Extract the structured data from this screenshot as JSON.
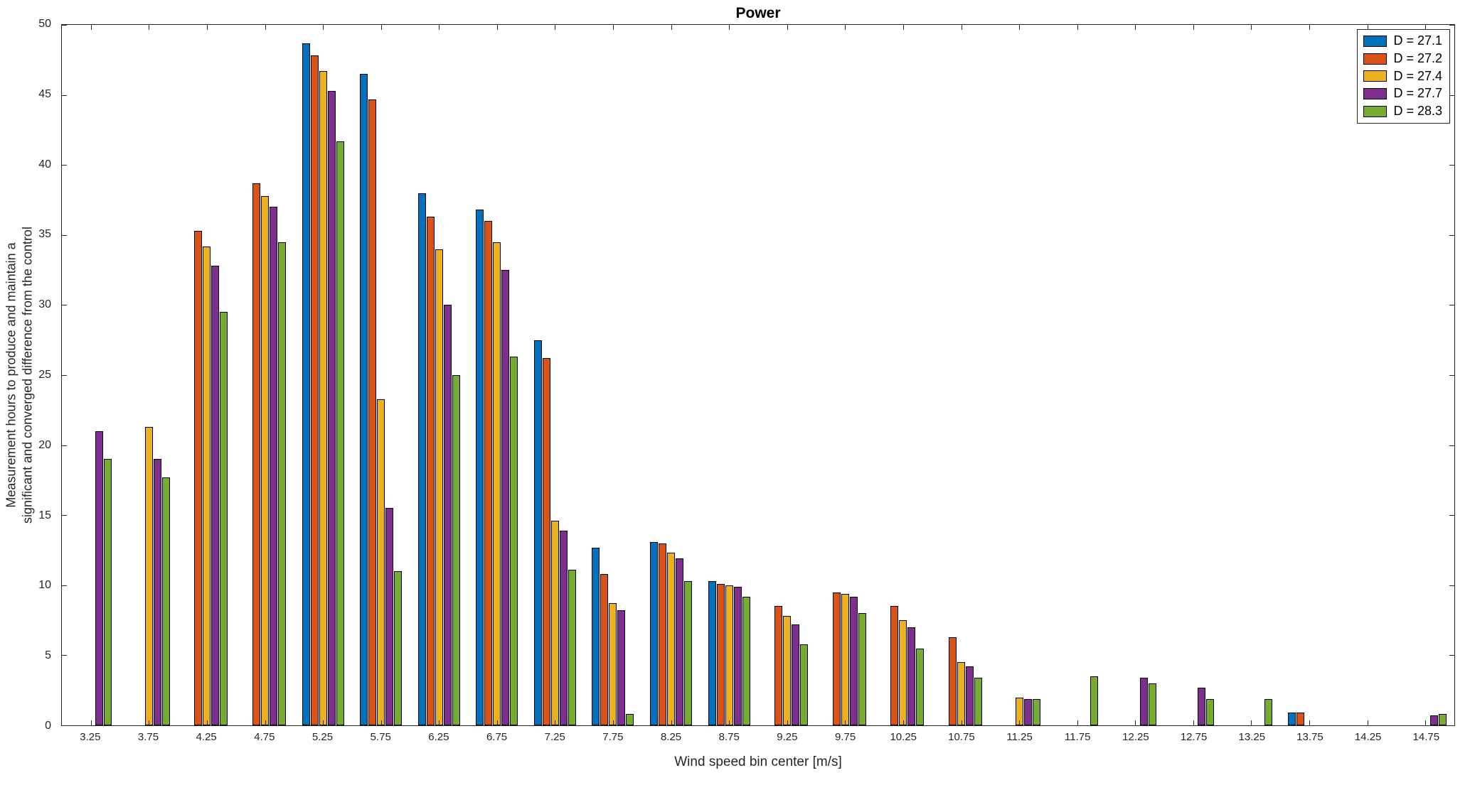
{
  "chart_data": {
    "type": "bar",
    "title": "Power",
    "xlabel": "Wind speed bin center [m/s]",
    "ylabel": "Measurement hours to produce and maintain a\nsignificant and converged difference from the control",
    "ylim": [
      0,
      50
    ],
    "yticks": [
      0,
      5,
      10,
      15,
      20,
      25,
      30,
      35,
      40,
      45,
      50
    ],
    "grid": false,
    "legend_position": "top-right",
    "categories": [
      "3.25",
      "3.75",
      "4.25",
      "4.75",
      "5.25",
      "5.75",
      "6.25",
      "6.75",
      "7.25",
      "7.75",
      "8.25",
      "8.75",
      "9.25",
      "9.75",
      "10.25",
      "10.75",
      "11.25",
      "11.75",
      "12.25",
      "12.75",
      "13.25",
      "13.75",
      "14.25",
      "14.75"
    ],
    "series": [
      {
        "name": "D = 27.1",
        "color": "#0072BD",
        "values": [
          0,
          0,
          0,
          0,
          48.7,
          46.5,
          38.0,
          36.8,
          27.5,
          12.7,
          13.1,
          10.3,
          0,
          0,
          0,
          0,
          0,
          0,
          0,
          0,
          0,
          0.9,
          0,
          0
        ]
      },
      {
        "name": "D = 27.2",
        "color": "#D95319",
        "values": [
          0,
          0,
          35.3,
          38.7,
          47.8,
          44.7,
          36.3,
          36.0,
          26.2,
          10.8,
          13.0,
          10.1,
          8.5,
          9.5,
          8.5,
          6.3,
          0,
          0,
          0,
          0,
          0,
          0.9,
          0,
          0
        ]
      },
      {
        "name": "D = 27.4",
        "color": "#EDB120",
        "values": [
          0,
          21.3,
          34.2,
          37.8,
          46.7,
          23.3,
          34.0,
          34.5,
          14.6,
          8.7,
          12.3,
          10.0,
          7.8,
          9.4,
          7.5,
          4.5,
          2.0,
          0,
          0,
          0,
          0,
          0,
          0,
          0
        ]
      },
      {
        "name": "D = 27.7",
        "color": "#7E2F8E",
        "values": [
          21.0,
          19.0,
          32.8,
          37.0,
          45.3,
          15.5,
          30.0,
          32.5,
          13.9,
          8.2,
          11.9,
          9.9,
          7.2,
          9.2,
          7.0,
          4.2,
          1.9,
          0,
          3.4,
          2.7,
          0,
          0,
          0,
          0.7
        ]
      },
      {
        "name": "D = 28.3",
        "color": "#77AC30",
        "values": [
          19.0,
          17.7,
          29.5,
          34.5,
          41.7,
          11.0,
          25.0,
          26.3,
          11.1,
          0.8,
          10.3,
          9.2,
          5.8,
          8.0,
          5.5,
          3.4,
          1.9,
          3.5,
          3.0,
          1.9,
          1.9,
          0,
          0,
          0.8
        ]
      }
    ]
  }
}
